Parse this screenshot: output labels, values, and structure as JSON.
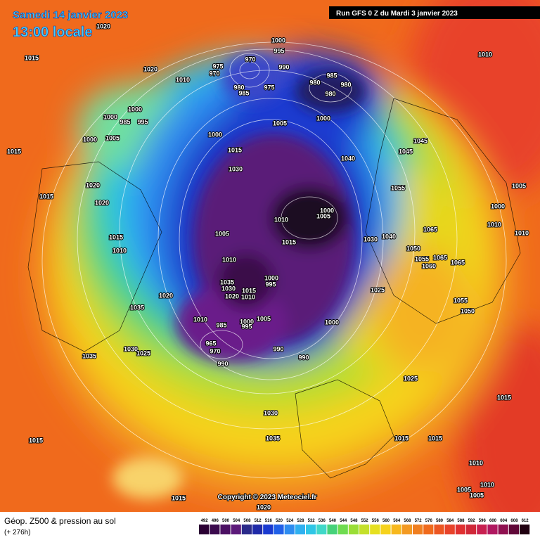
{
  "header": {
    "date": "Samedi 14 janvier 2023",
    "time": "13:00 locale",
    "run": "Run GFS 0 Z du Mardi 3 janvier 2023"
  },
  "isobar_labels": [
    "1020",
    "1015",
    "1020",
    "1010",
    "975",
    "970",
    "970",
    "975",
    "980",
    "985",
    "1000",
    "995",
    "990",
    "985",
    "980",
    "980",
    "980",
    "1000",
    "1005",
    "1000",
    "1000",
    "985",
    "995",
    "1000",
    "1005",
    "1000",
    "1015",
    "1030",
    "1045",
    "1045",
    "1040",
    "1055",
    "1020",
    "1015",
    "1020",
    "1010",
    "1000",
    "1005",
    "1005",
    "1015",
    "1030",
    "1040",
    "1050",
    "1065",
    "1055",
    "1060",
    "1065",
    "1065",
    "1000",
    "1010",
    "1005",
    "1010",
    "1015",
    "1010",
    "1010",
    "1035",
    "1030",
    "1020",
    "1015",
    "1010",
    "1000",
    "995",
    "1025",
    "1035",
    "1020",
    "1010",
    "985",
    "1000",
    "995",
    "1005",
    "1000",
    "965",
    "970",
    "990",
    "990",
    "990",
    "1030",
    "1025",
    "1035",
    "1055",
    "1050",
    "1025",
    "1030",
    "1035",
    "1015",
    "1015",
    "1015",
    "1015",
    "1010",
    "1010",
    "1005",
    "1005",
    "1015",
    "1020",
    "1010",
    "1015"
  ],
  "footer": {
    "copyright": "Copyright © 2023 Meteociel.fr"
  },
  "legend": {
    "title": "Géop. Z500 & pression au sol",
    "lead": "(+ 276h)",
    "ticks": [
      492,
      496,
      500,
      504,
      508,
      512,
      516,
      520,
      524,
      528,
      532,
      536,
      540,
      544,
      548,
      552,
      556,
      560,
      564,
      568,
      572,
      576,
      580,
      584,
      588,
      592,
      596,
      600,
      604,
      608,
      612
    ],
    "colors": [
      "#2a0033",
      "#3b0a4d",
      "#4b1063",
      "#5c1a7a",
      "#2a2a8a",
      "#1f2aa8",
      "#1a3ad0",
      "#2060e8",
      "#2d8cf0",
      "#2fb0f0",
      "#2fc6e6",
      "#40d8c8",
      "#46d27a",
      "#6fdc50",
      "#9ade36",
      "#c4e02a",
      "#e6e020",
      "#f6d21c",
      "#f7b81e",
      "#f39a23",
      "#f07f20",
      "#f06a1c",
      "#ec5622",
      "#e8432a",
      "#e03030",
      "#d02838",
      "#c82050",
      "#b01860",
      "#901050",
      "#600838",
      "#200010"
    ]
  }
}
